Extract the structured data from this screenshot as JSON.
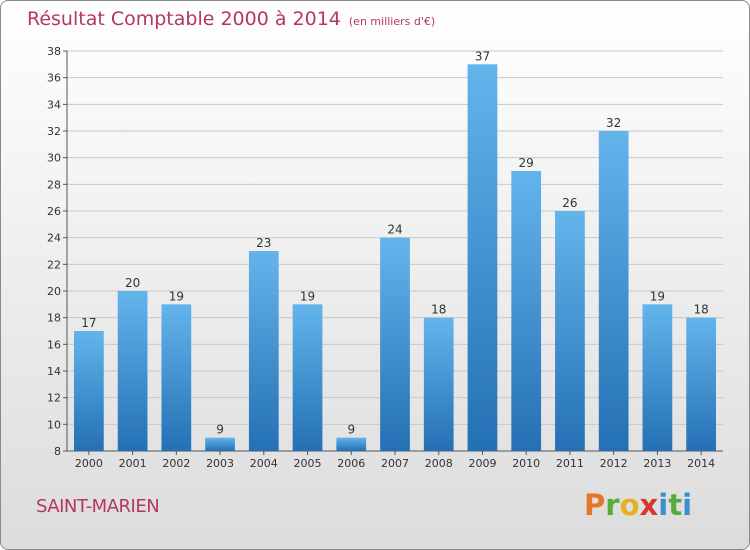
{
  "title": "Résultat Comptable 2000 à 2014",
  "unit": "(en milliers d'€)",
  "commune": "SAINT-MARIEN",
  "logo": {
    "letters": [
      "P",
      "r",
      "o",
      "x",
      "i",
      "t",
      "i"
    ],
    "colors": [
      "#e6762a",
      "#5aaa3c",
      "#e6b020",
      "#d33a2c",
      "#3a8fd0",
      "#5aaa3c",
      "#3a8fd0"
    ]
  },
  "colors": {
    "bar_light": "#64b4ec",
    "bar_dark": "#2470b4",
    "title": "#b5375d"
  },
  "chart_data": {
    "type": "bar",
    "title": "Résultat Comptable 2000 à 2014",
    "ylabel": "en milliers d'€",
    "xlabel": "",
    "categories": [
      "2000",
      "2001",
      "2002",
      "2003",
      "2004",
      "2005",
      "2006",
      "2007",
      "2008",
      "2009",
      "2010",
      "2011",
      "2012",
      "2013",
      "2014"
    ],
    "values": [
      17,
      20,
      19,
      9,
      23,
      19,
      9,
      24,
      18,
      37,
      29,
      26,
      32,
      19,
      18
    ],
    "ylim": [
      8,
      38
    ],
    "yticks": [
      8,
      10,
      12,
      14,
      16,
      18,
      20,
      22,
      24,
      26,
      28,
      30,
      32,
      34,
      36,
      38
    ],
    "grid": true
  }
}
